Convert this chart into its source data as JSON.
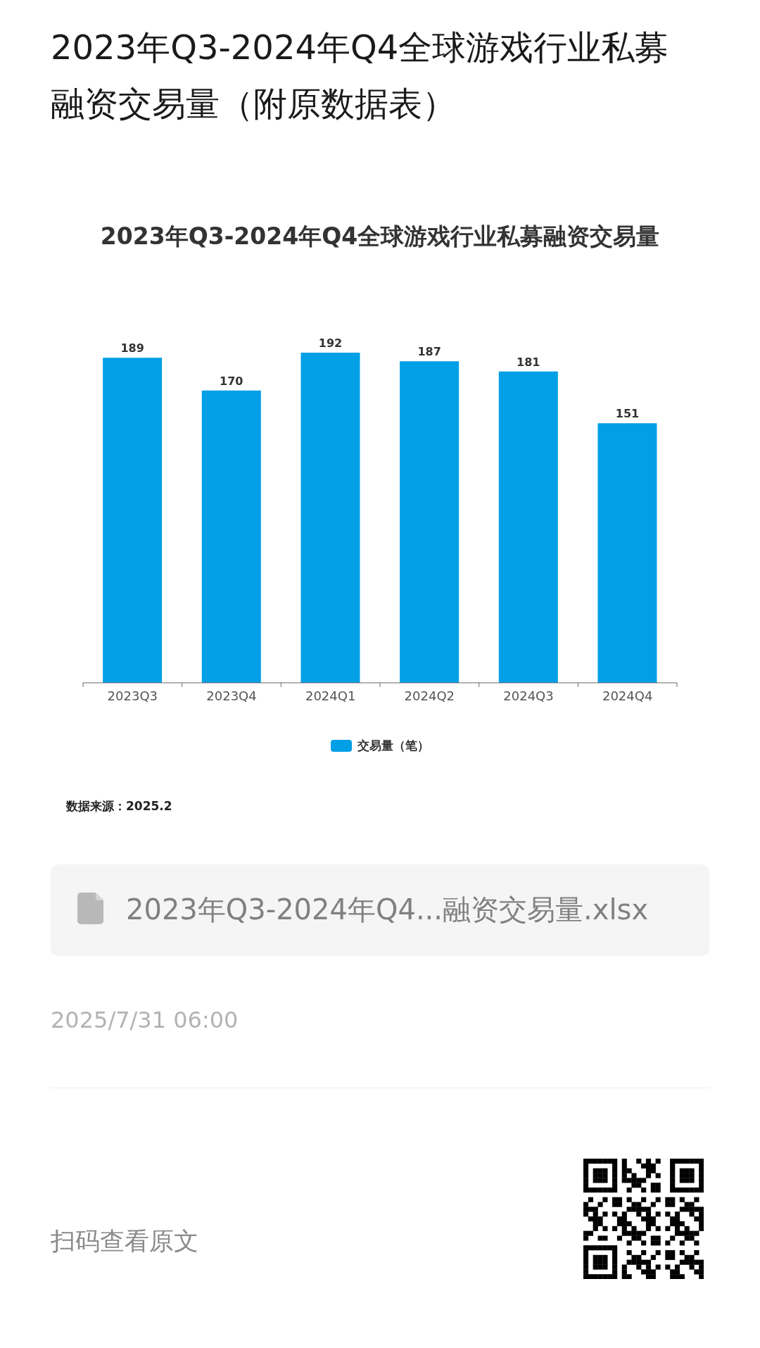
{
  "chart_data": {
    "type": "bar",
    "title": "2023年Q3-2024年Q4全球游戏行业私募融资交易量（附原数据表）",
    "subtitle": "2023年Q3-2024年Q4全球游戏行业私募融资交易量",
    "categories": [
      "2023Q3",
      "2023Q4",
      "2024Q1",
      "2024Q2",
      "2024Q3",
      "2024Q4"
    ],
    "series": [
      {
        "name": "交易量（笔）",
        "color": "#009fe6",
        "values": [
          189,
          170,
          192,
          187,
          181,
          151
        ]
      }
    ],
    "data_labels": true,
    "legend": "bottom",
    "annotations": [
      "数据来源：2025.2",
      "2023年Q3-2024年Q4...融资交易量.xlsx",
      "2025/7/31 06:00",
      "扫码查看原文"
    ]
  }
}
